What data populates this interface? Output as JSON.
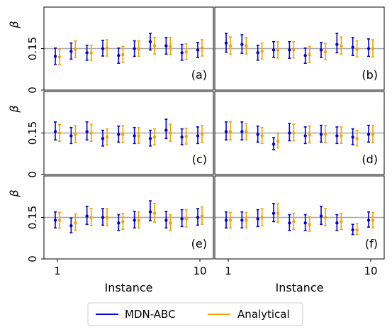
{
  "chart_data": {
    "type": "scatter",
    "x_label": "Instance",
    "y_label": "β",
    "x_ticks": [
      "1",
      "10"
    ],
    "y_ticks": [
      "0",
      "0.15"
    ],
    "reference_line": 0.15,
    "reference_color": "#a6a6a6",
    "ylim": [
      0,
      0.3
    ],
    "legend": {
      "placement": "bottom-center",
      "entries": [
        {
          "name": "MDN-ABC",
          "color": "#0000d4"
        },
        {
          "name": "Analytical",
          "color": "#f5a300"
        }
      ]
    },
    "panels": [
      {
        "label": "(a)",
        "mdn": {
          "mean": [
            0.122,
            0.14,
            0.135,
            0.15,
            0.125,
            0.15,
            0.175,
            0.16,
            0.135,
            0.145
          ],
          "low": [
            0.093,
            0.112,
            0.108,
            0.123,
            0.097,
            0.122,
            0.145,
            0.13,
            0.108,
            0.118
          ],
          "high": [
            0.152,
            0.17,
            0.162,
            0.18,
            0.152,
            0.178,
            0.205,
            0.19,
            0.165,
            0.172
          ]
        },
        "analytical": {
          "mean": [
            0.12,
            0.147,
            0.135,
            0.152,
            0.128,
            0.15,
            0.16,
            0.158,
            0.138,
            0.152
          ],
          "low": [
            0.093,
            0.118,
            0.108,
            0.123,
            0.1,
            0.122,
            0.13,
            0.128,
            0.11,
            0.123
          ],
          "high": [
            0.148,
            0.178,
            0.162,
            0.182,
            0.157,
            0.178,
            0.19,
            0.19,
            0.167,
            0.182
          ]
        }
      },
      {
        "label": "(b)",
        "mdn": {
          "mean": [
            0.17,
            0.165,
            0.135,
            0.145,
            0.145,
            0.125,
            0.145,
            0.165,
            0.155,
            0.15
          ],
          "low": [
            0.137,
            0.133,
            0.108,
            0.118,
            0.115,
            0.097,
            0.118,
            0.135,
            0.125,
            0.122
          ],
          "high": [
            0.205,
            0.2,
            0.162,
            0.175,
            0.175,
            0.152,
            0.172,
            0.205,
            0.19,
            0.185
          ]
        },
        "analytical": {
          "mean": [
            0.16,
            0.16,
            0.14,
            0.145,
            0.145,
            0.128,
            0.138,
            0.16,
            0.148,
            0.15
          ],
          "low": [
            0.13,
            0.13,
            0.112,
            0.116,
            0.116,
            0.1,
            0.11,
            0.13,
            0.12,
            0.12
          ],
          "high": [
            0.192,
            0.19,
            0.17,
            0.175,
            0.175,
            0.158,
            0.168,
            0.192,
            0.178,
            0.182
          ]
        }
      },
      {
        "label": "(c)",
        "mdn": {
          "mean": [
            0.155,
            0.14,
            0.155,
            0.13,
            0.145,
            0.14,
            0.13,
            0.16,
            0.135,
            0.14
          ],
          "low": [
            0.125,
            0.112,
            0.125,
            0.103,
            0.117,
            0.112,
            0.103,
            0.13,
            0.108,
            0.112
          ],
          "high": [
            0.19,
            0.17,
            0.19,
            0.16,
            0.175,
            0.17,
            0.16,
            0.2,
            0.165,
            0.172
          ]
        },
        "analytical": {
          "mean": [
            0.15,
            0.145,
            0.15,
            0.135,
            0.145,
            0.14,
            0.135,
            0.15,
            0.138,
            0.145
          ],
          "low": [
            0.12,
            0.116,
            0.12,
            0.107,
            0.116,
            0.112,
            0.107,
            0.12,
            0.11,
            0.116
          ],
          "high": [
            0.18,
            0.177,
            0.182,
            0.165,
            0.177,
            0.17,
            0.165,
            0.182,
            0.167,
            0.177
          ]
        }
      },
      {
        "label": "(d)",
        "mdn": {
          "mean": [
            0.155,
            0.155,
            0.145,
            0.11,
            0.15,
            0.14,
            0.145,
            0.14,
            0.135,
            0.145
          ],
          "low": [
            0.125,
            0.125,
            0.117,
            0.09,
            0.122,
            0.112,
            0.117,
            0.112,
            0.108,
            0.117
          ],
          "high": [
            0.19,
            0.19,
            0.175,
            0.133,
            0.185,
            0.172,
            0.178,
            0.172,
            0.165,
            0.178
          ]
        },
        "analytical": {
          "mean": [
            0.155,
            0.155,
            0.14,
            0.12,
            0.15,
            0.143,
            0.145,
            0.14,
            0.13,
            0.145
          ],
          "low": [
            0.125,
            0.125,
            0.112,
            0.096,
            0.122,
            0.114,
            0.116,
            0.112,
            0.103,
            0.116
          ],
          "high": [
            0.19,
            0.185,
            0.17,
            0.148,
            0.182,
            0.175,
            0.177,
            0.172,
            0.16,
            0.177
          ]
        }
      },
      {
        "label": "(e)",
        "mdn": {
          "mean": [
            0.14,
            0.12,
            0.155,
            0.15,
            0.13,
            0.14,
            0.17,
            0.14,
            0.145,
            0.15
          ],
          "low": [
            0.112,
            0.095,
            0.125,
            0.122,
            0.103,
            0.112,
            0.138,
            0.112,
            0.117,
            0.122
          ],
          "high": [
            0.17,
            0.148,
            0.19,
            0.182,
            0.16,
            0.172,
            0.21,
            0.172,
            0.178,
            0.182
          ]
        },
        "analytical": {
          "mean": [
            0.14,
            0.13,
            0.15,
            0.15,
            0.135,
            0.14,
            0.165,
            0.13,
            0.145,
            0.155
          ],
          "low": [
            0.112,
            0.103,
            0.12,
            0.12,
            0.107,
            0.112,
            0.133,
            0.103,
            0.116,
            0.125
          ],
          "high": [
            0.168,
            0.162,
            0.182,
            0.182,
            0.165,
            0.17,
            0.2,
            0.16,
            0.178,
            0.188
          ]
        }
      },
      {
        "label": "(f)",
        "mdn": {
          "mean": [
            0.14,
            0.14,
            0.145,
            0.165,
            0.13,
            0.13,
            0.155,
            0.13,
            0.105,
            0.14
          ],
          "low": [
            0.112,
            0.112,
            0.117,
            0.135,
            0.103,
            0.103,
            0.125,
            0.103,
            0.088,
            0.115
          ],
          "high": [
            0.17,
            0.17,
            0.178,
            0.2,
            0.16,
            0.16,
            0.19,
            0.16,
            0.125,
            0.17
          ]
        },
        "analytical": {
          "mean": [
            0.14,
            0.14,
            0.15,
            0.165,
            0.135,
            0.125,
            0.15,
            0.135,
            0.105,
            0.14
          ],
          "low": [
            0.112,
            0.112,
            0.12,
            0.133,
            0.107,
            0.1,
            0.12,
            0.107,
            0.088,
            0.112
          ],
          "high": [
            0.168,
            0.168,
            0.182,
            0.2,
            0.165,
            0.152,
            0.182,
            0.165,
            0.128,
            0.168
          ]
        }
      }
    ]
  }
}
